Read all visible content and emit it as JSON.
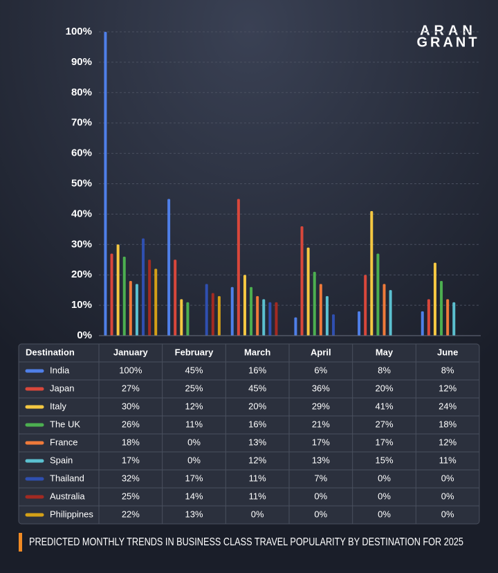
{
  "logo": {
    "line1": "ARAN",
    "line2": "GRANT"
  },
  "chart_data": {
    "type": "bar",
    "title": "PREDICTED MONTHLY TRENDS IN BUSINESS CLASS TRAVEL POPULARITY BY DESTINATION FOR 2025",
    "table_header": "Destination",
    "categories": [
      "January",
      "February",
      "March",
      "April",
      "May",
      "June"
    ],
    "series": [
      {
        "name": "India",
        "color": "#4f7fe8",
        "values": [
          100,
          45,
          16,
          6,
          8,
          8
        ],
        "value_labels": [
          "100%",
          "45%",
          "16%",
          "6%",
          "8%",
          "8%"
        ]
      },
      {
        "name": "Japan",
        "color": "#d9473b",
        "values": [
          27,
          25,
          45,
          36,
          20,
          12
        ],
        "value_labels": [
          "27%",
          "25%",
          "45%",
          "36%",
          "20%",
          "12%"
        ]
      },
      {
        "name": "Italy",
        "color": "#f5c842",
        "values": [
          30,
          12,
          20,
          29,
          41,
          24
        ],
        "value_labels": [
          "30%",
          "12%",
          "20%",
          "29%",
          "41%",
          "24%"
        ]
      },
      {
        "name": "The UK",
        "color": "#4caf50",
        "values": [
          26,
          11,
          16,
          21,
          27,
          18
        ],
        "value_labels": [
          "26%",
          "11%",
          "16%",
          "21%",
          "27%",
          "18%"
        ]
      },
      {
        "name": "France",
        "color": "#ef7a3a",
        "values": [
          18,
          0,
          13,
          17,
          17,
          12
        ],
        "value_labels": [
          "18%",
          "0%",
          "13%",
          "17%",
          "17%",
          "12%"
        ]
      },
      {
        "name": "Spain",
        "color": "#5bc0d0",
        "values": [
          17,
          0,
          12,
          13,
          15,
          11
        ],
        "value_labels": [
          "17%",
          "0%",
          "12%",
          "13%",
          "15%",
          "11%"
        ]
      },
      {
        "name": "Thailand",
        "color": "#2f4fb0",
        "values": [
          32,
          17,
          11,
          7,
          0,
          0
        ],
        "value_labels": [
          "32%",
          "17%",
          "11%",
          "7%",
          "0%",
          "0%"
        ]
      },
      {
        "name": "Australia",
        "color": "#a32a22",
        "values": [
          25,
          14,
          11,
          0,
          0,
          0
        ],
        "value_labels": [
          "25%",
          "14%",
          "11%",
          "0%",
          "0%",
          "0%"
        ]
      },
      {
        "name": "Philippines",
        "color": "#d4a017",
        "values": [
          22,
          13,
          0,
          0,
          0,
          0
        ],
        "value_labels": [
          "22%",
          "13%",
          "0%",
          "0%",
          "0%",
          "0%"
        ]
      }
    ],
    "ylim": [
      0,
      100
    ],
    "yticks": [
      {
        "value": 0,
        "label": "0%"
      },
      {
        "value": 10,
        "label": "10%"
      },
      {
        "value": 20,
        "label": "20%"
      },
      {
        "value": 30,
        "label": "30%"
      },
      {
        "value": 40,
        "label": "40%"
      },
      {
        "value": 50,
        "label": "50%"
      },
      {
        "value": 60,
        "label": "60%"
      },
      {
        "value": 70,
        "label": "70%"
      },
      {
        "value": 80,
        "label": "80%"
      },
      {
        "value": 90,
        "label": "90%"
      },
      {
        "value": 100,
        "label": "100%"
      }
    ],
    "grid": true
  }
}
